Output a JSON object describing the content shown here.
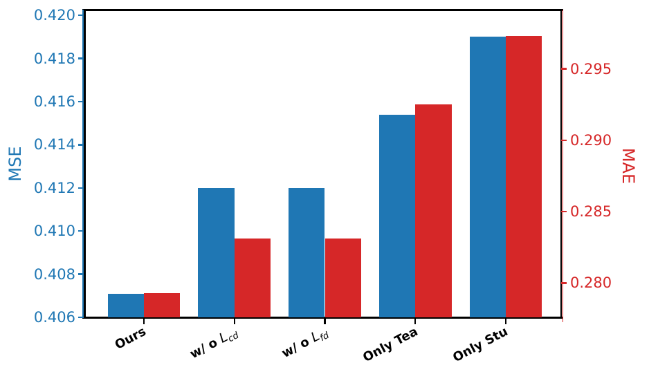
{
  "chart_data": {
    "type": "bar",
    "title": "",
    "categories": [
      {
        "label": "Ours",
        "prefix": "Ours",
        "math_var": "",
        "subscript": ""
      },
      {
        "label": "w/ o L_cd",
        "prefix": "w/ o ",
        "math_var": "L",
        "subscript": "cd"
      },
      {
        "label": "w/ o L_fd",
        "prefix": "w/ o ",
        "math_var": "L",
        "subscript": "fd"
      },
      {
        "label": "Only Tea",
        "prefix": "Only Tea",
        "math_var": "",
        "subscript": ""
      },
      {
        "label": "Only Stu",
        "prefix": "Only Stu",
        "math_var": "",
        "subscript": ""
      }
    ],
    "series": [
      {
        "name": "MSE",
        "axis": "left",
        "color": "#1f77b4",
        "values": [
          0.4071,
          0.412,
          0.412,
          0.4154,
          0.419
        ]
      },
      {
        "name": "MAE",
        "axis": "right",
        "color": "#d62728",
        "values": [
          0.2793,
          0.2831,
          0.2831,
          0.2925,
          0.2973
        ]
      }
    ],
    "left_axis": {
      "label": "MSE",
      "color": "#1f77b4",
      "tick_labels": [
        "0.406",
        "0.408",
        "0.410",
        "0.412",
        "0.414",
        "0.416",
        "0.418",
        "0.420"
      ],
      "lim": [
        0.406,
        0.42026
      ]
    },
    "right_axis": {
      "label": "MAE",
      "color": "#d62728",
      "tick_labels": [
        "0.280",
        "0.285",
        "0.290",
        "0.295"
      ],
      "lim": [
        0.2776,
        0.29915
      ]
    },
    "xlim": [
      -0.658,
      4.612
    ],
    "bar_width": 0.4,
    "xlabel": "",
    "ylabel_left": "MSE",
    "ylabel_right": "MAE",
    "legend": "none",
    "grid": false
  }
}
